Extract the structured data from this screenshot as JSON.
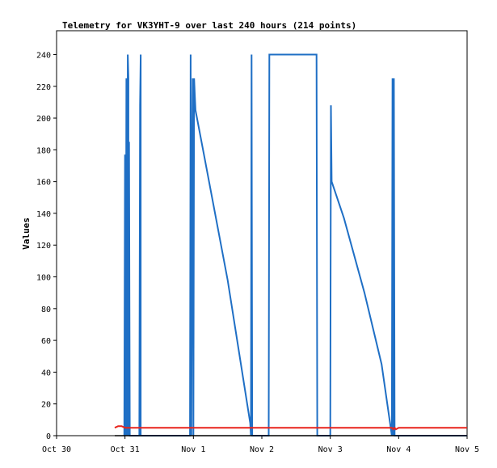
{
  "chart_data": {
    "type": "line",
    "title": "Telemetry for VK3YHT-9 over last 240 hours (214 points)",
    "ylabel": "Values",
    "xlabel": "",
    "ylim": [
      0,
      255
    ],
    "yticks": [
      0,
      20,
      40,
      60,
      80,
      100,
      120,
      140,
      160,
      180,
      200,
      220,
      240
    ],
    "xlim": [
      0,
      6
    ],
    "xtick_labels": [
      "Oct 30",
      "Oct 31",
      "Nov 1",
      "Nov 2",
      "Nov 3",
      "Nov 4",
      "Nov 5"
    ],
    "grid": false,
    "series": [
      {
        "color": "#1f6fc5",
        "x": [
          0.98,
          0.99,
          1.0,
          1.01,
          1.01,
          1.02,
          1.03,
          1.04,
          1.05,
          1.05,
          1.06,
          1.07,
          1.08,
          1.09,
          1.1,
          1.11,
          1.12,
          1.15,
          1.2,
          1.21,
          1.22,
          1.23,
          1.23,
          1.24,
          1.25,
          1.26,
          1.3,
          1.5,
          1.8,
          1.95,
          1.96,
          1.97,
          1.98,
          1.99,
          2.0,
          2.01,
          2.02,
          2.03,
          2.15,
          2.5,
          2.83,
          2.84,
          2.85,
          2.86,
          2.87,
          3.1,
          3.11,
          3.12,
          3.5,
          3.8,
          3.81,
          3.85,
          3.9,
          4.0,
          4.01,
          4.02,
          4.2,
          4.5,
          4.75,
          4.9,
          4.91,
          4.92,
          4.93,
          4.94,
          4.95,
          5.2,
          6.0
        ],
        "values": [
          0,
          0,
          177,
          0,
          0,
          225,
          0,
          240,
          225,
          0,
          185,
          0,
          0,
          0,
          0,
          0,
          0,
          0,
          0,
          0,
          208,
          240,
          0,
          0,
          0,
          0,
          0,
          0,
          0,
          0,
          240,
          0,
          160,
          225,
          0,
          225,
          215,
          205,
          178,
          98,
          8,
          0,
          240,
          0,
          0,
          0,
          240,
          240,
          240,
          240,
          0,
          0,
          0,
          0,
          208,
          160,
          137,
          90,
          45,
          0,
          225,
          0,
          225,
          0,
          0,
          0,
          0
        ]
      },
      {
        "color": "#e8231c",
        "x": [
          0.85,
          0.9,
          0.95,
          1.0,
          1.05,
          1.1,
          1.2,
          1.5,
          2.0,
          3.0,
          4.0,
          4.9,
          4.92,
          4.94,
          4.96,
          5.0,
          6.0
        ],
        "values": [
          5,
          6,
          6,
          5,
          5,
          5,
          5,
          5,
          5,
          5,
          5,
          5,
          4,
          5,
          4,
          5,
          5
        ]
      },
      {
        "color": "#000000",
        "x": [
          0.85,
          6.0
        ],
        "values": [
          0,
          0
        ]
      }
    ]
  }
}
